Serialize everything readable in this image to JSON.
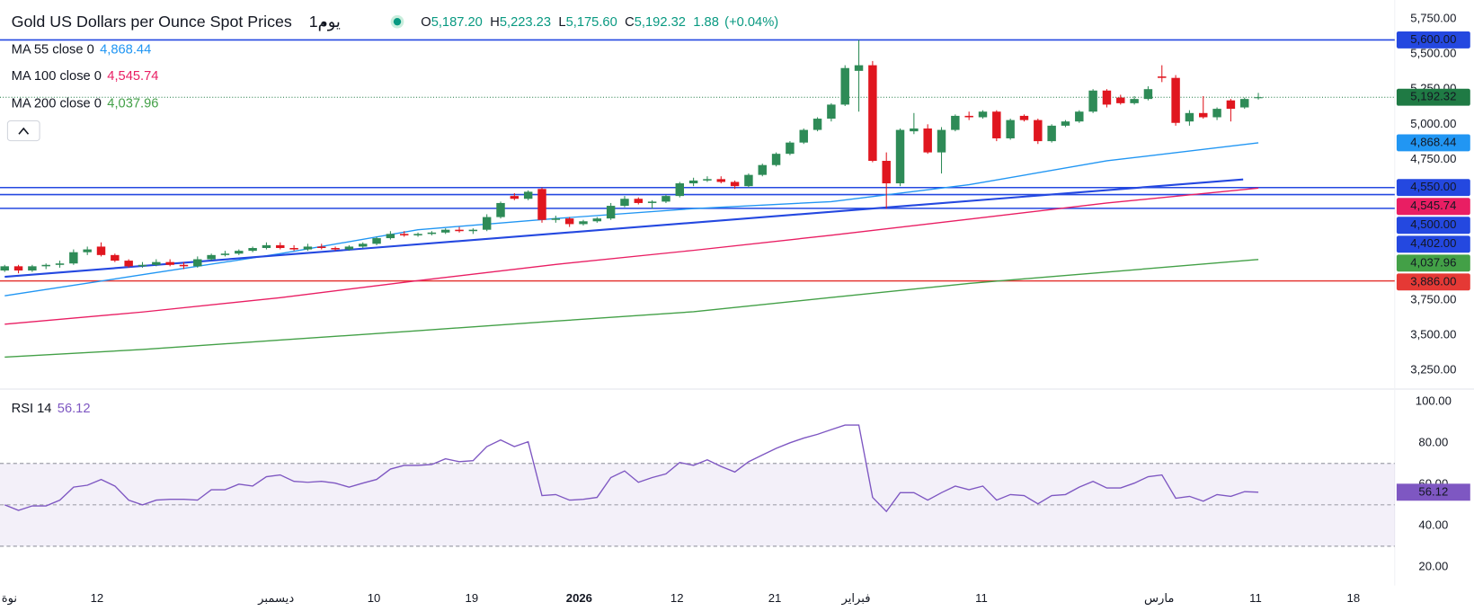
{
  "chart_data": [
    {
      "type": "candlestick",
      "title": "Gold US Dollars per Ounce Spot Prices",
      "interval": "يوم1",
      "header": {
        "ohlc": [
          {
            "prefix": "O",
            "label": "5,187.20"
          },
          {
            "prefix": "H",
            "label": "5,223.23"
          },
          {
            "prefix": "L",
            "label": "5,175.60"
          },
          {
            "prefix": "C",
            "label": "5,192.32"
          }
        ],
        "change": "1.88",
        "change_pct": "(+0.04%)"
      },
      "up_color": "#2e8b57",
      "down_color": "#e0161f",
      "xlim": [
        -0.34,
        100.9
      ],
      "ylim": [
        3130,
        5884
      ],
      "yticks": [
        {
          "value": 5750,
          "label": "5,750.00"
        },
        {
          "value": 5500,
          "label": "5,500.00"
        },
        {
          "value": 5250,
          "label": "5,250.00"
        },
        {
          "value": 5000,
          "label": "5,000.00"
        },
        {
          "value": 4750,
          "label": "4,750.00"
        },
        {
          "value": 3750,
          "label": "3,750.00"
        },
        {
          "value": 3500,
          "label": "3,500.00"
        },
        {
          "value": 3250,
          "label": "3,250.00"
        }
      ],
      "xticks": [
        {
          "value": 0.34,
          "label": "نوة"
        },
        {
          "value": 6.7,
          "label": "12"
        },
        {
          "value": 19.7,
          "label": "ديسمبر"
        },
        {
          "value": 26.8,
          "label": "10"
        },
        {
          "value": 33.9,
          "label": "19"
        },
        {
          "value": 41.7,
          "label": "2026",
          "bold": true
        },
        {
          "value": 48.8,
          "label": "12"
        },
        {
          "value": 55.9,
          "label": "21"
        },
        {
          "value": 61.8,
          "label": "فبراير"
        },
        {
          "value": 70.9,
          "label": "11"
        },
        {
          "value": 83.8,
          "label": "مارس"
        },
        {
          "value": 90.8,
          "label": "11"
        },
        {
          "value": 97.9,
          "label": "18"
        }
      ],
      "ohlc": [
        [
          3960,
          4000,
          3950,
          3990
        ],
        [
          3990,
          4000,
          3940,
          3960
        ],
        [
          3960,
          4000,
          3950,
          3990
        ],
        [
          3990,
          4010,
          3970,
          4000
        ],
        [
          4000,
          4030,
          3980,
          4010
        ],
        [
          4010,
          4110,
          4000,
          4090
        ],
        [
          4090,
          4130,
          4070,
          4110
        ],
        [
          4130,
          4160,
          4060,
          4070
        ],
        [
          4070,
          4080,
          4020,
          4030
        ],
        [
          4030,
          4040,
          3980,
          3990
        ],
        [
          3990,
          4020,
          3980,
          4000
        ],
        [
          4000,
          4040,
          3990,
          4020
        ],
        [
          4020,
          4040,
          3990,
          4000
        ],
        [
          4000,
          4020,
          3970,
          3990
        ],
        [
          3990,
          4060,
          3980,
          4040
        ],
        [
          4040,
          4080,
          4030,
          4070
        ],
        [
          4070,
          4100,
          4060,
          4080
        ],
        [
          4080,
          4110,
          4070,
          4100
        ],
        [
          4100,
          4130,
          4090,
          4120
        ],
        [
          4120,
          4160,
          4110,
          4140
        ],
        [
          4140,
          4160,
          4110,
          4120
        ],
        [
          4120,
          4140,
          4100,
          4110
        ],
        [
          4110,
          4150,
          4100,
          4130
        ],
        [
          4130,
          4150,
          4110,
          4120
        ],
        [
          4120,
          4130,
          4100,
          4110
        ],
        [
          4110,
          4140,
          4100,
          4130
        ],
        [
          4130,
          4160,
          4120,
          4150
        ],
        [
          4150,
          4200,
          4140,
          4190
        ],
        [
          4190,
          4240,
          4180,
          4220
        ],
        [
          4220,
          4240,
          4200,
          4210
        ],
        [
          4210,
          4230,
          4200,
          4220
        ],
        [
          4220,
          4240,
          4210,
          4230
        ],
        [
          4230,
          4260,
          4220,
          4250
        ],
        [
          4250,
          4270,
          4230,
          4240
        ],
        [
          4240,
          4260,
          4220,
          4250
        ],
        [
          4250,
          4360,
          4240,
          4340
        ],
        [
          4340,
          4450,
          4330,
          4440
        ],
        [
          4490,
          4510,
          4460,
          4470
        ],
        [
          4470,
          4530,
          4460,
          4520
        ],
        [
          4540,
          4550,
          4300,
          4320
        ],
        [
          4320,
          4350,
          4300,
          4330
        ],
        [
          4330,
          4340,
          4270,
          4290
        ],
        [
          4290,
          4320,
          4280,
          4310
        ],
        [
          4310,
          4340,
          4300,
          4330
        ],
        [
          4330,
          4440,
          4320,
          4420
        ],
        [
          4420,
          4490,
          4410,
          4470
        ],
        [
          4470,
          4480,
          4430,
          4440
        ],
        [
          4440,
          4460,
          4400,
          4450
        ],
        [
          4450,
          4500,
          4440,
          4490
        ],
        [
          4490,
          4590,
          4480,
          4580
        ],
        [
          4580,
          4620,
          4560,
          4600
        ],
        [
          4600,
          4630,
          4590,
          4610
        ],
        [
          4610,
          4630,
          4580,
          4590
        ],
        [
          4590,
          4600,
          4540,
          4560
        ],
        [
          4560,
          4650,
          4550,
          4640
        ],
        [
          4640,
          4720,
          4630,
          4710
        ],
        [
          4710,
          4800,
          4700,
          4790
        ],
        [
          4790,
          4880,
          4780,
          4870
        ],
        [
          4870,
          4970,
          4860,
          4960
        ],
        [
          4960,
          5050,
          4950,
          5040
        ],
        [
          5040,
          5150,
          5020,
          5140
        ],
        [
          5140,
          5420,
          5130,
          5400
        ],
        [
          5380,
          5600,
          5090,
          5420
        ],
        [
          5420,
          5450,
          4730,
          4740
        ],
        [
          4740,
          4800,
          4400,
          4580
        ],
        [
          4580,
          4970,
          4560,
          4960
        ],
        [
          4950,
          5080,
          4930,
          4970
        ],
        [
          4970,
          5000,
          4790,
          4800
        ],
        [
          4800,
          4980,
          4650,
          4960
        ],
        [
          4960,
          5070,
          4950,
          5060
        ],
        [
          5060,
          5090,
          5030,
          5050
        ],
        [
          5050,
          5100,
          5040,
          5090
        ],
        [
          5090,
          5100,
          4880,
          4900
        ],
        [
          4900,
          5040,
          4890,
          5030
        ],
        [
          5060,
          5070,
          5020,
          5030
        ],
        [
          5030,
          5040,
          4860,
          4880
        ],
        [
          4880,
          5000,
          4870,
          4990
        ],
        [
          4990,
          5030,
          4980,
          5020
        ],
        [
          5020,
          5100,
          5010,
          5090
        ],
        [
          5090,
          5250,
          5080,
          5240
        ],
        [
          5240,
          5250,
          5120,
          5140
        ],
        [
          5190,
          5210,
          5140,
          5150
        ],
        [
          5150,
          5200,
          5140,
          5180
        ],
        [
          5180,
          5270,
          5170,
          5250
        ],
        [
          5340,
          5420,
          5300,
          5330
        ],
        [
          5330,
          5350,
          4990,
          5010
        ],
        [
          5020,
          5100,
          4990,
          5080
        ],
        [
          5080,
          5200,
          5040,
          5050
        ],
        [
          5050,
          5120,
          5030,
          5110
        ],
        [
          5170,
          5180,
          5020,
          5110
        ],
        [
          5120,
          5190,
          5110,
          5180
        ],
        [
          5187.2,
          5223.23,
          5175.6,
          5192.32
        ]
      ],
      "series": [
        {
          "name": "MA 55 close 0",
          "color": "#2196f3",
          "x": [
            0,
            10,
            20,
            30,
            40,
            50,
            60,
            70,
            80,
            91
          ],
          "values": [
            3780,
            3930,
            4080,
            4250,
            4330,
            4400,
            4450,
            4570,
            4740,
            4868.44
          ],
          "value_labels": [
            null,
            null,
            null,
            null,
            null,
            null,
            null,
            null,
            null,
            "4,868.44"
          ]
        },
        {
          "name": "MA 100 close 0",
          "color": "#e91e63",
          "x": [
            0,
            10,
            20,
            30,
            40,
            50,
            60,
            70,
            80,
            91
          ],
          "values": [
            3578,
            3665,
            3767,
            3888,
            4003,
            4103,
            4211,
            4325,
            4440,
            4545.74
          ],
          "value_labels": [
            null,
            null,
            null,
            null,
            null,
            null,
            null,
            null,
            null,
            "4,545.74"
          ]
        },
        {
          "name": "MA 200 close 0",
          "color": "#43a047",
          "x": [
            0,
            10,
            20,
            30,
            40,
            50,
            60,
            70,
            80,
            91
          ],
          "values": [
            3344,
            3398,
            3465,
            3532,
            3600,
            3667,
            3768,
            3868,
            3949,
            4037.96
          ],
          "value_labels": [
            null,
            null,
            null,
            null,
            null,
            null,
            null,
            null,
            null,
            "4,037.96"
          ]
        }
      ],
      "trendline": {
        "color": "#2448e0",
        "x": [
          0,
          89.9
        ],
        "values": [
          3915,
          4608
        ]
      },
      "levels": [
        {
          "value": 5600,
          "label": "5,600.00",
          "color": "#2448e0"
        },
        {
          "value": 4550,
          "label": "4,550.00",
          "color": "#2448e0"
        },
        {
          "value": 4500,
          "label": "4,500.00",
          "color": "#2448e0"
        },
        {
          "value": 4402,
          "label": "4,402.00",
          "color": "#2448e0"
        },
        {
          "value": 3886,
          "label": "3,886.00",
          "color": "#e53935"
        }
      ],
      "last_price": {
        "value": 5192.32,
        "label": "5,192.32",
        "color": "#1f7a44"
      }
    },
    {
      "type": "line",
      "name": "RSI 14",
      "label": "56.12",
      "color": "#7e57c2",
      "ylim": [
        11,
        106
      ],
      "yticks": [
        {
          "value": 100,
          "label": "100.00"
        },
        {
          "value": 80,
          "label": "80.00"
        },
        {
          "value": 60,
          "label": "60.00"
        },
        {
          "value": 40,
          "label": "40.00"
        },
        {
          "value": 20,
          "label": "20.00"
        }
      ],
      "bands": [
        70,
        50,
        30
      ],
      "values": [
        50,
        47.3,
        49.5,
        49.5,
        52.3,
        58.6,
        59.5,
        62.3,
        59.1,
        52.3,
        50,
        52.3,
        52.7,
        52.7,
        52.3,
        57.3,
        57.3,
        60,
        59.1,
        63.6,
        64.5,
        61.4,
        60.9,
        61.4,
        60.5,
        58.6,
        60.5,
        62.3,
        67.3,
        69.1,
        69.1,
        69.5,
        72.3,
        70.9,
        71.4,
        78.2,
        81.4,
        78.2,
        80.5,
        54.5,
        55,
        52.3,
        52.7,
        53.6,
        63.2,
        66.4,
        60.9,
        63.2,
        65,
        70.5,
        69.1,
        71.8,
        68.6,
        65.9,
        70.9,
        74.1,
        77.3,
        80,
        82.3,
        84.1,
        86.4,
        88.6,
        88.6,
        53.6,
        46.8,
        55.9,
        55.9,
        52.3,
        55.9,
        59.1,
        57.3,
        59.1,
        52.3,
        55,
        54.5,
        50.5,
        54.5,
        55,
        58.6,
        61.4,
        58.2,
        58.2,
        60.5,
        63.6,
        64.5,
        53.2,
        54.1,
        51.8,
        55,
        54.1,
        56.4,
        56.12
      ]
    }
  ]
}
